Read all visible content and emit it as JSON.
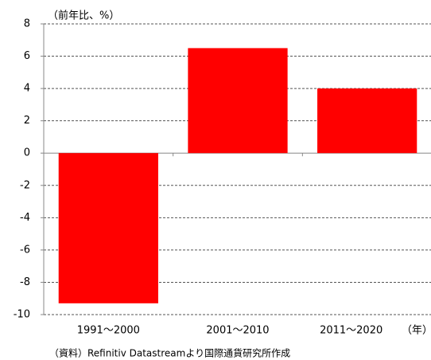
{
  "chart_data": {
    "type": "bar",
    "y_label": "（前年比、%）",
    "x_label": "（年）",
    "source": "（資料）Refinitiv Datastreamより国際通貨研究所作成",
    "categories": [
      "1991～2000",
      "2001～2010",
      "2011～2020"
    ],
    "values": [
      -9.3,
      6.5,
      4.0
    ],
    "color": "#ff0000",
    "ylim": [
      -10,
      8
    ],
    "yticks": [
      -10,
      -8,
      -6,
      -4,
      -2,
      0,
      2,
      4,
      6,
      8
    ],
    "grid": true
  }
}
